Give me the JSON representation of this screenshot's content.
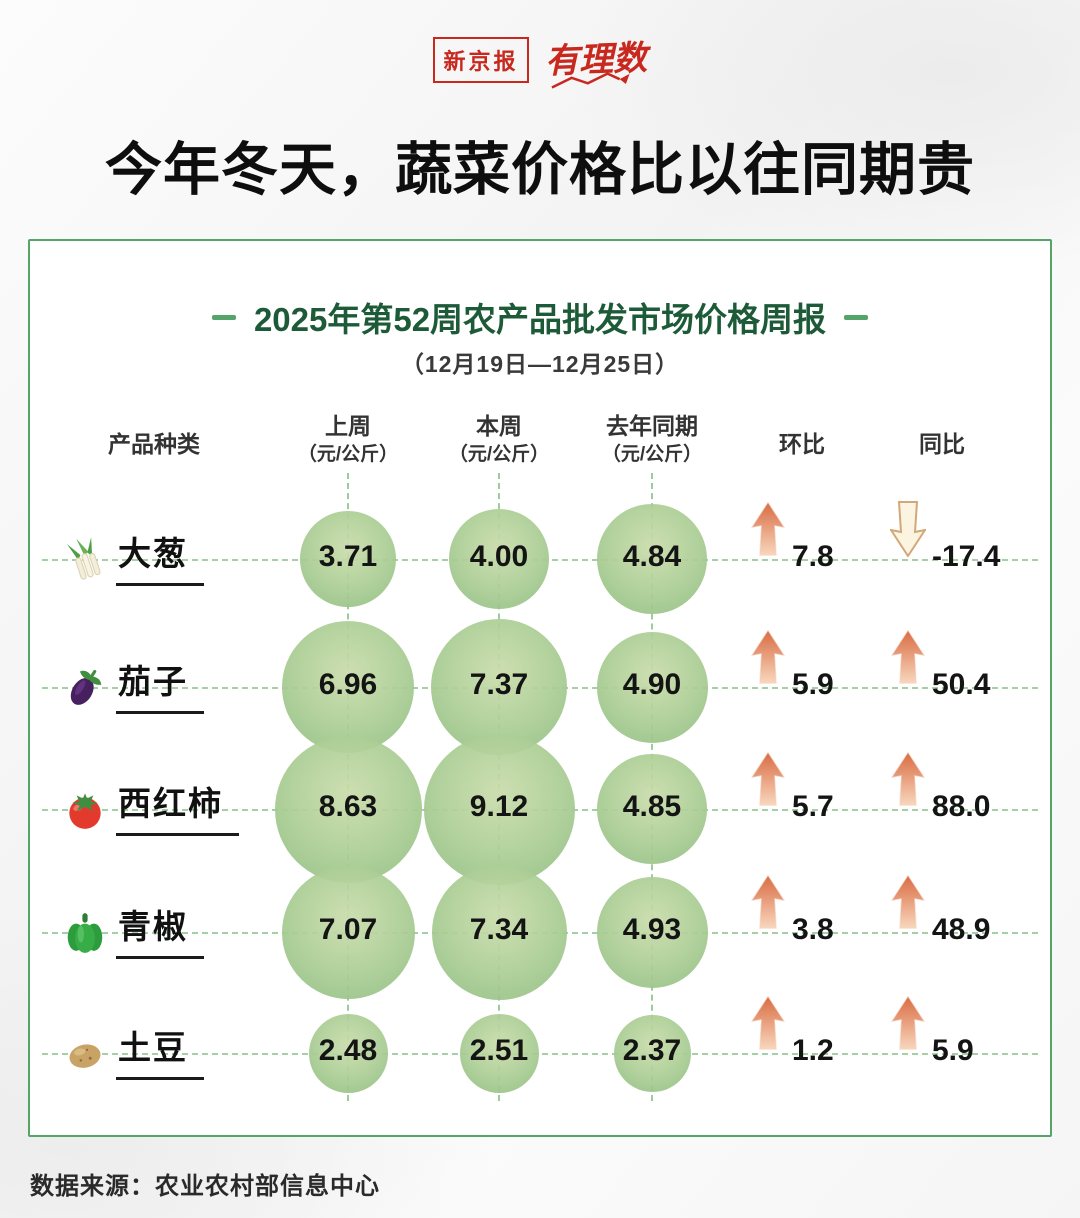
{
  "header": {
    "brand_primary": "新京报",
    "brand_secondary": "有理数",
    "title": "今年冬天，蔬菜价格比以往同期贵"
  },
  "card": {
    "title": "2025年第52周农产品批发市场价格周报",
    "subtitle": "（12月19日—12月25日）",
    "columns": {
      "product": "产品种类",
      "last_week": "上周",
      "this_week": "本周",
      "last_year": "去年同期",
      "unit": "（元/公斤）",
      "wow": "环比",
      "yoy": "同比"
    }
  },
  "chart_data": {
    "type": "table",
    "title": "2025年第52周农产品批发市场价格周报",
    "period": "12月19日—12月25日",
    "unit": "元/公斤",
    "columns": [
      "产品种类",
      "上周（元/公斤）",
      "本周（元/公斤）",
      "去年同期（元/公斤）",
      "环比",
      "同比"
    ],
    "rows": [
      {
        "name": "大葱",
        "icon": "scallion-icon",
        "values": [
          {
            "v": 3.71,
            "d": "3.71"
          },
          {
            "v": 4.0,
            "d": "4.00"
          },
          {
            "v": 4.84,
            "d": "4.84"
          }
        ],
        "wow": {
          "d": "7.8",
          "dir": "up"
        },
        "yoy": {
          "d": "-17.4",
          "dir": "down"
        }
      },
      {
        "name": "茄子",
        "icon": "eggplant-icon",
        "values": [
          {
            "v": 6.96,
            "d": "6.96"
          },
          {
            "v": 7.37,
            "d": "7.37"
          },
          {
            "v": 4.9,
            "d": "4.90"
          }
        ],
        "wow": {
          "d": "5.9",
          "dir": "up"
        },
        "yoy": {
          "d": "50.4",
          "dir": "up"
        }
      },
      {
        "name": "西红柿",
        "icon": "tomato-icon",
        "values": [
          {
            "v": 8.63,
            "d": "8.63"
          },
          {
            "v": 9.12,
            "d": "9.12"
          },
          {
            "v": 4.85,
            "d": "4.85"
          }
        ],
        "wow": {
          "d": "5.7",
          "dir": "up"
        },
        "yoy": {
          "d": "88.0",
          "dir": "up"
        }
      },
      {
        "name": "青椒",
        "icon": "pepper-icon",
        "values": [
          {
            "v": 7.07,
            "d": "7.07"
          },
          {
            "v": 7.34,
            "d": "7.34"
          },
          {
            "v": 4.93,
            "d": "4.93"
          }
        ],
        "wow": {
          "d": "3.8",
          "dir": "up"
        },
        "yoy": {
          "d": "48.9",
          "dir": "up"
        }
      },
      {
        "name": "土豆",
        "icon": "potato-icon",
        "values": [
          {
            "v": 2.48,
            "d": "2.48"
          },
          {
            "v": 2.51,
            "d": "2.51"
          },
          {
            "v": 2.37,
            "d": "2.37"
          }
        ],
        "wow": {
          "d": "1.2",
          "dir": "up"
        },
        "yoy": {
          "d": "5.9",
          "dir": "up"
        }
      }
    ]
  },
  "footer": {
    "source": "数据来源：农业农村部信息中心"
  },
  "colors": {
    "brand_red": "#c8281e",
    "card_border": "#55a468",
    "dashed_line": "#9ccb9c",
    "title_green": "#1d5a38",
    "bubble_green": "#a5cc92",
    "arrow_up": "#d96b41",
    "arrow_down_outline": "#d3a878"
  }
}
